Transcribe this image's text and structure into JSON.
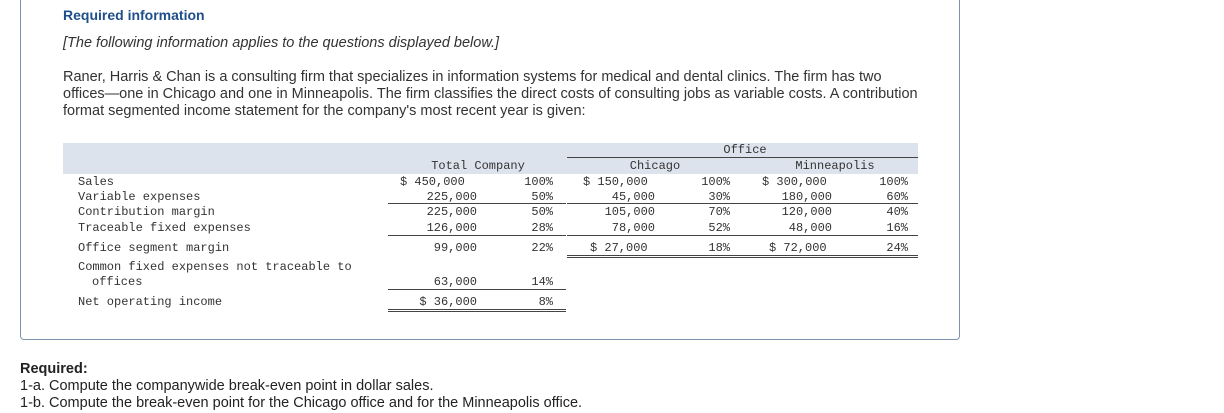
{
  "heading": "Required information",
  "note": "[The following information applies to the questions displayed below.]",
  "paragraph": "Raner, Harris & Chan is a consulting firm that specializes in information systems for medical and dental clinics. The firm has two offices—one in Chicago and one in Minneapolis. The firm classifies the direct costs of consulting jobs as variable costs. A contribution format segmented income statement for the company's most recent year is given:",
  "statement": {
    "office_header": "Office",
    "col_total": "Total Company",
    "col_chicago": "Chicago",
    "col_minneapolis": "Minneapolis",
    "rows": [
      {
        "label": "Sales",
        "total": "$ 450,000",
        "total_pct": "100%",
        "chi": "$ 150,000",
        "chi_pct": "100%",
        "min": "$ 300,000",
        "min_pct": "100%"
      },
      {
        "label": "Variable expenses",
        "total": "225,000",
        "total_pct": "50%",
        "chi": "45,000",
        "chi_pct": "30%",
        "min": "180,000",
        "min_pct": "60%"
      },
      {
        "label": "Contribution margin",
        "total": "225,000",
        "total_pct": "50%",
        "chi": "105,000",
        "chi_pct": "70%",
        "min": "120,000",
        "min_pct": "40%"
      },
      {
        "label": "Traceable fixed expenses",
        "total": "126,000",
        "total_pct": "28%",
        "chi": "78,000",
        "chi_pct": "52%",
        "min": "48,000",
        "min_pct": "16%"
      },
      {
        "label": "Office segment margin",
        "total": "99,000",
        "total_pct": "22%",
        "chi": "$ 27,000",
        "chi_pct": "18%",
        "min": "$ 72,000",
        "min_pct": "24%"
      }
    ],
    "common_label_1": "Common fixed expenses not traceable to",
    "common_label_2": "offices",
    "common_total": "63,000",
    "common_pct": "14%",
    "net_label": "Net operating income",
    "net_total": "$ 36,000",
    "net_pct": "8%"
  },
  "required": {
    "title": "Required:",
    "items": [
      "1-a. Compute the companywide break-even point in dollar sales.",
      "1-b. Compute the break-even point for the Chicago office and for the Minneapolis office."
    ]
  }
}
